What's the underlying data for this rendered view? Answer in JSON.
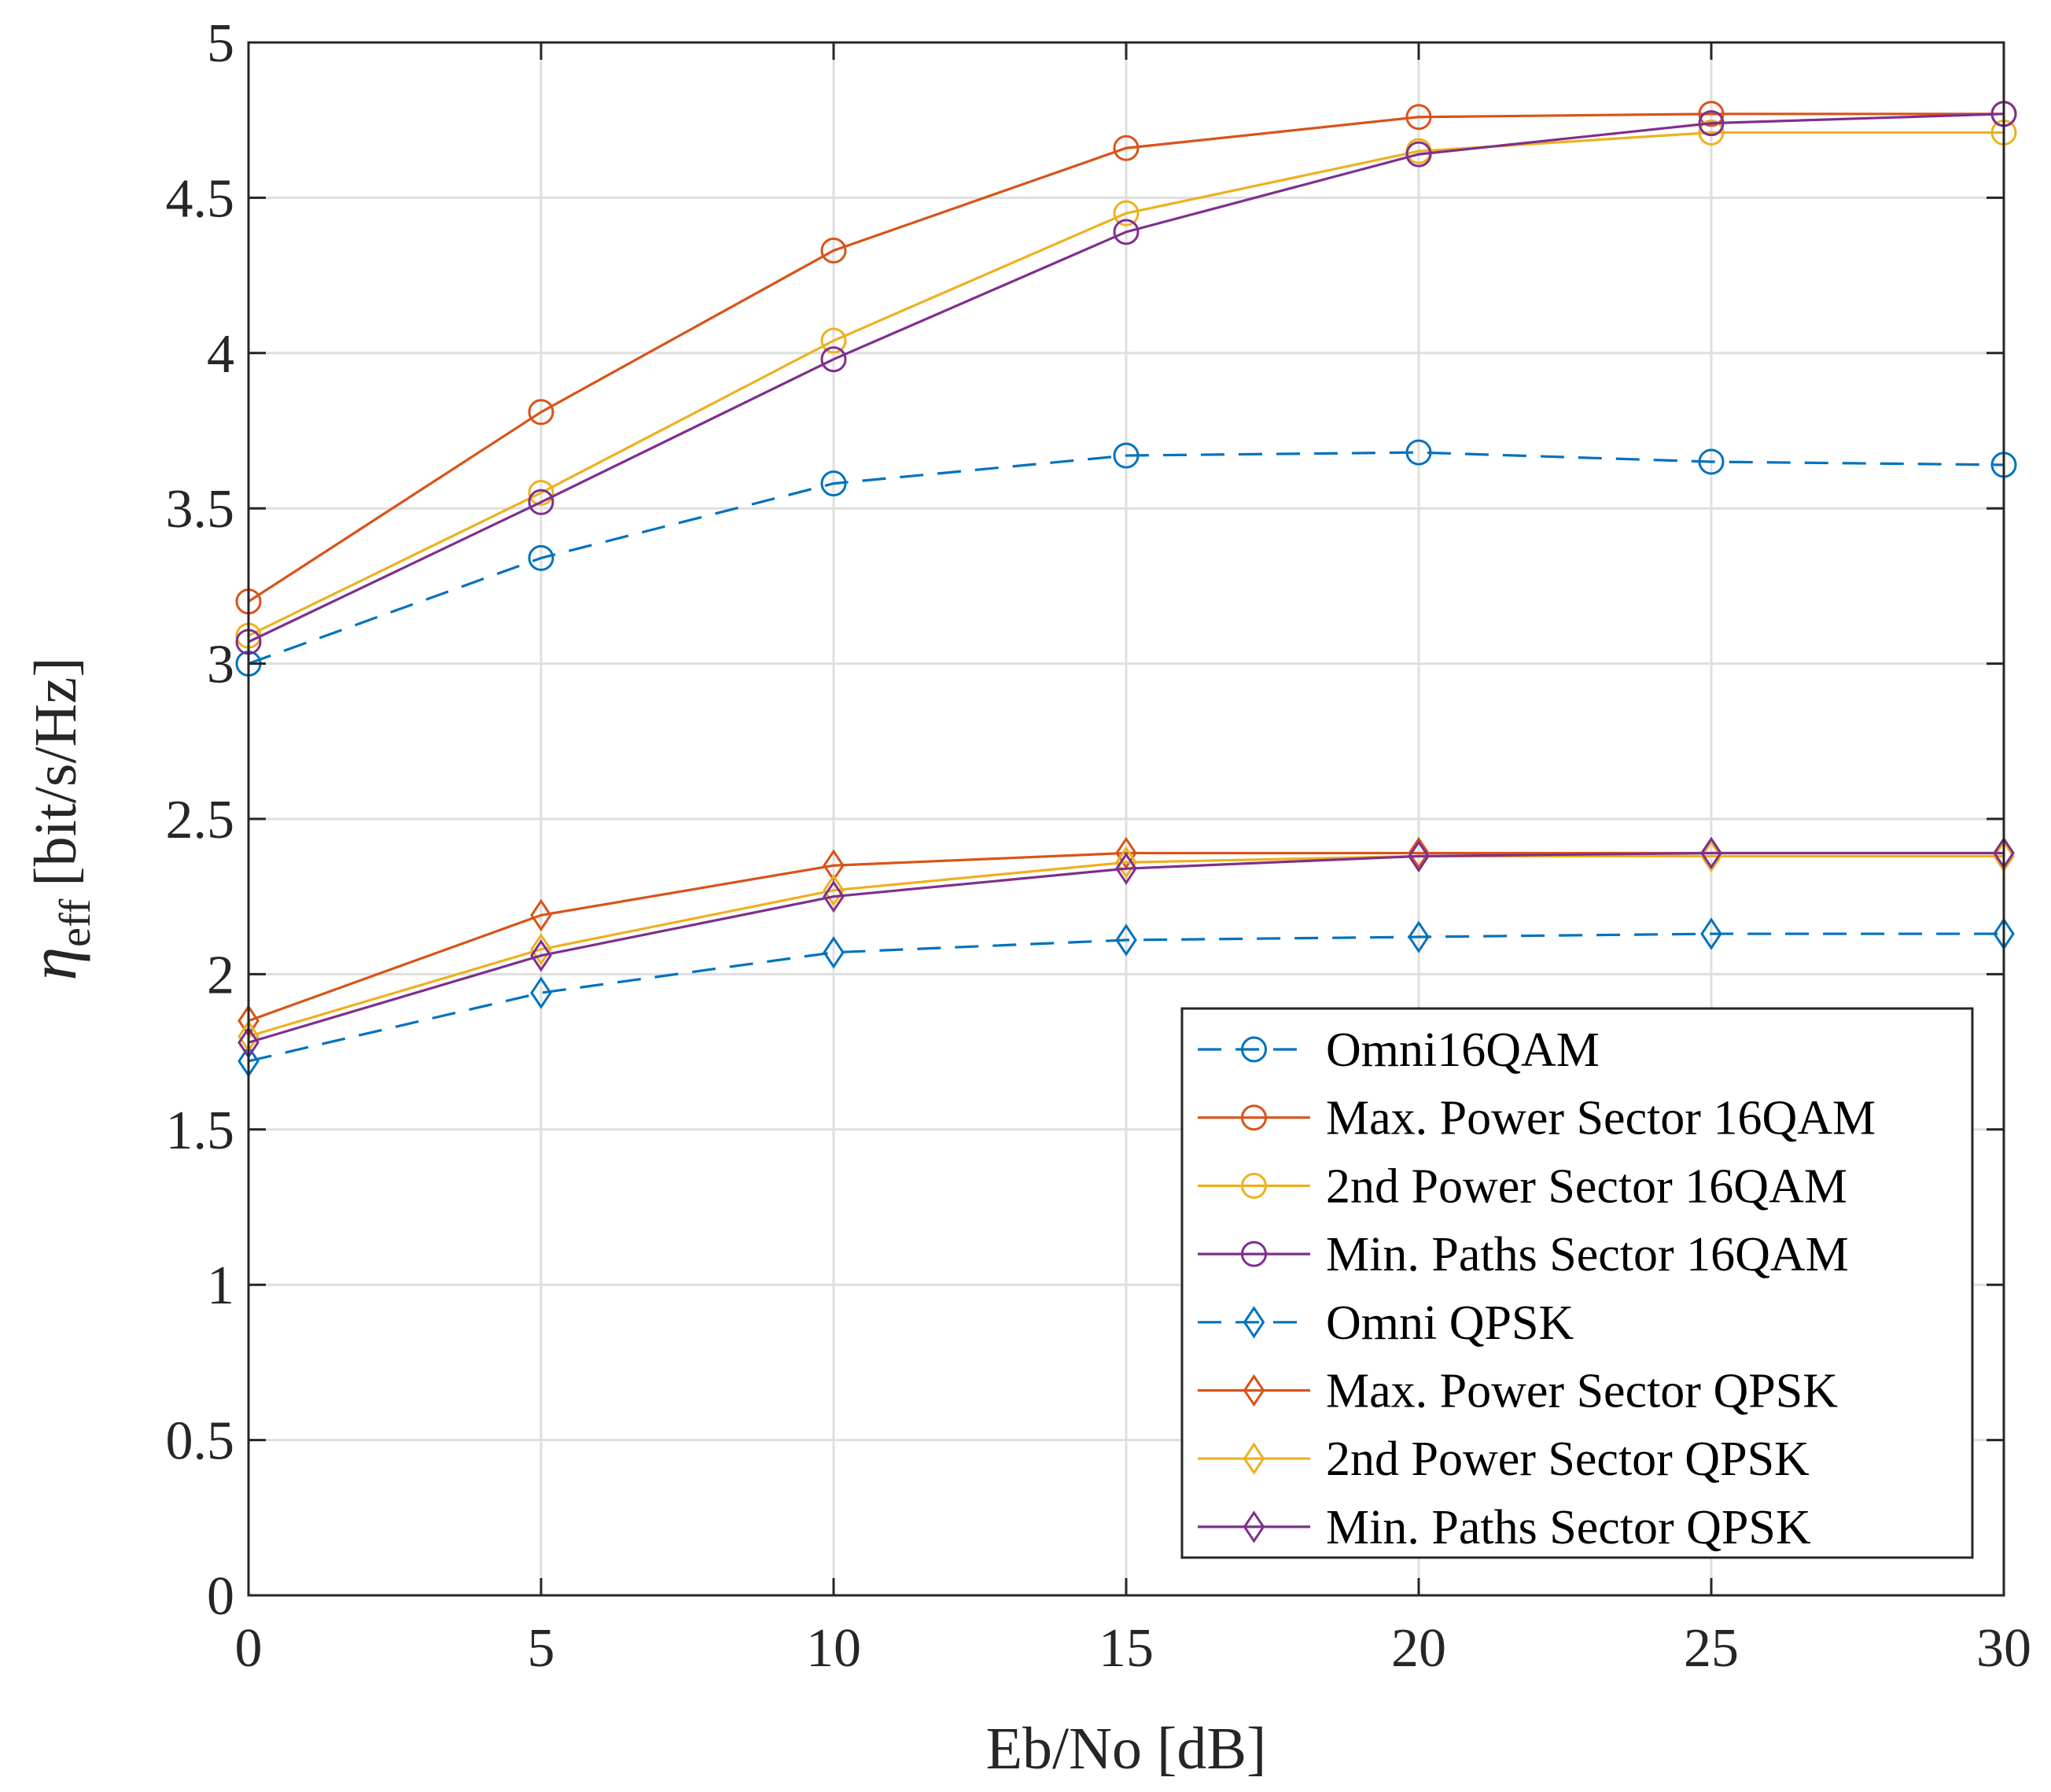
{
  "chart_data": {
    "type": "line",
    "xlabel": "Eb/No [dB]",
    "ylabel": {
      "symbol": "η",
      "subscript": "eff",
      "unit": "[bit/s/Hz]"
    },
    "xlim": [
      0,
      30
    ],
    "ylim": [
      0,
      5
    ],
    "xticks": [
      0,
      5,
      10,
      15,
      20,
      25,
      30
    ],
    "yticks": [
      0,
      0.5,
      1,
      1.5,
      2,
      2.5,
      3,
      3.5,
      4,
      4.5,
      5
    ],
    "xtick_labels": [
      "0",
      "5",
      "10",
      "15",
      "20",
      "25",
      "30"
    ],
    "ytick_labels": [
      "0",
      "0.5",
      "1",
      "1.5",
      "2",
      "2.5",
      "3",
      "3.5",
      "4",
      "4.5",
      "5"
    ],
    "grid": true,
    "legend_position": "bottom-right",
    "x": [
      0,
      5,
      10,
      15,
      20,
      25,
      30
    ],
    "series": [
      {
        "name": "Omni16QAM",
        "color": "#0072BD",
        "dash": "dashed",
        "marker": "circle",
        "values": [
          3.0,
          3.34,
          3.58,
          3.67,
          3.68,
          3.65,
          3.64
        ]
      },
      {
        "name": "Max. Power Sector 16QAM",
        "color": "#D95319",
        "dash": "solid",
        "marker": "circle",
        "values": [
          3.2,
          3.81,
          4.33,
          4.66,
          4.76,
          4.77,
          4.77
        ]
      },
      {
        "name": "2nd Power Sector 16QAM",
        "color": "#EDB120",
        "dash": "solid",
        "marker": "circle",
        "values": [
          3.09,
          3.55,
          4.04,
          4.45,
          4.65,
          4.71,
          4.71
        ]
      },
      {
        "name": "Min. Paths Sector 16QAM",
        "color": "#7E2F8E",
        "dash": "solid",
        "marker": "circle",
        "values": [
          3.07,
          3.52,
          3.98,
          4.39,
          4.64,
          4.74,
          4.77
        ]
      },
      {
        "name": "Omni QPSK",
        "color": "#0072BD",
        "dash": "dashed",
        "marker": "diamond",
        "values": [
          1.72,
          1.94,
          2.07,
          2.11,
          2.12,
          2.13,
          2.13
        ]
      },
      {
        "name": "Max. Power Sector QPSK",
        "color": "#D95319",
        "dash": "solid",
        "marker": "diamond",
        "values": [
          1.85,
          2.19,
          2.35,
          2.39,
          2.39,
          2.39,
          2.39
        ]
      },
      {
        "name": "2nd Power Sector QPSK",
        "color": "#EDB120",
        "dash": "solid",
        "marker": "diamond",
        "values": [
          1.8,
          2.08,
          2.27,
          2.36,
          2.38,
          2.38,
          2.38
        ]
      },
      {
        "name": "Min. Paths Sector QPSK",
        "color": "#7E2F8E",
        "dash": "solid",
        "marker": "diamond",
        "values": [
          1.78,
          2.06,
          2.25,
          2.34,
          2.38,
          2.39,
          2.39
        ]
      }
    ]
  }
}
